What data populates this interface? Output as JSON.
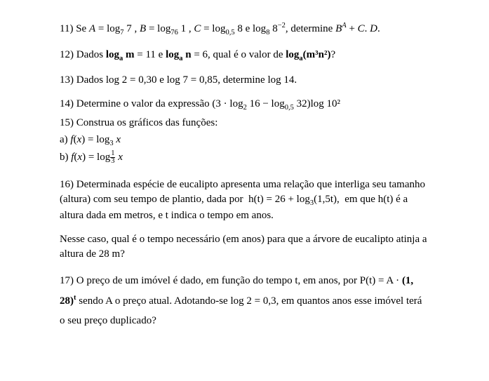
{
  "q11": {
    "prefix": "11) Se ",
    "expr": "A = log₇ 7 , B = log₇₆ 1 , C = log₀,₅ 8 e log₈ 8⁻²",
    "suffix": ", determine ",
    "result": "Bᴬ + C. D.",
    "text_color": "#000000"
  },
  "q12": {
    "prefix": "12) Dados ",
    "part1": "logₐ m",
    "eq1": " = 11 e ",
    "part2": "logₐ n",
    "eq2": " = 6, qual é o valor de ",
    "part3": "logₐ(m³n²)",
    "suffix": "?"
  },
  "q13": {
    "text": "13) Dados log 2 = 0,30 e log 7 = 0,85, determine log 14."
  },
  "q14": {
    "text": "14) Determine o valor da expressão (3 · log₂ 16 − log₀,₅ 32)log 10²"
  },
  "q15": {
    "header": "15) Construa os gráficos das funções:",
    "a_prefix": "a) ",
    "a_func": "f(x) = log₃ x",
    "b_prefix": "b) ",
    "b_func_pre": "f(x) = log",
    "b_func_post": " x"
  },
  "q16": {
    "para1": "16) Determinada espécie de eucalipto apresenta uma relação que interliga seu tamanho (altura) com seu tempo de plantio, dada por  h(t) = 26 + log₃(1,5t),  em que h(t) é a altura dada em metros, e t indica o tempo em anos.",
    "para2": "Nesse caso, qual é o tempo necessário (em anos) para que a árvore de eucalipto atinja a altura de 28 m?"
  },
  "q17": {
    "line1_pre": "17) O preço de um imóvel é dado, em função do tempo t, em anos, por P(t) = A · ",
    "line1_bold": "(1, 28)ᵗ",
    "line2": "sendo A o preço atual. Adotando-se log 2 = 0,3, em quantos anos esse imóvel terá o seu",
    "line3": "preço duplicado?"
  },
  "style": {
    "background": "#ffffff",
    "text_color": "#000000",
    "font_family": "Times New Roman",
    "base_fontsize": 15
  }
}
